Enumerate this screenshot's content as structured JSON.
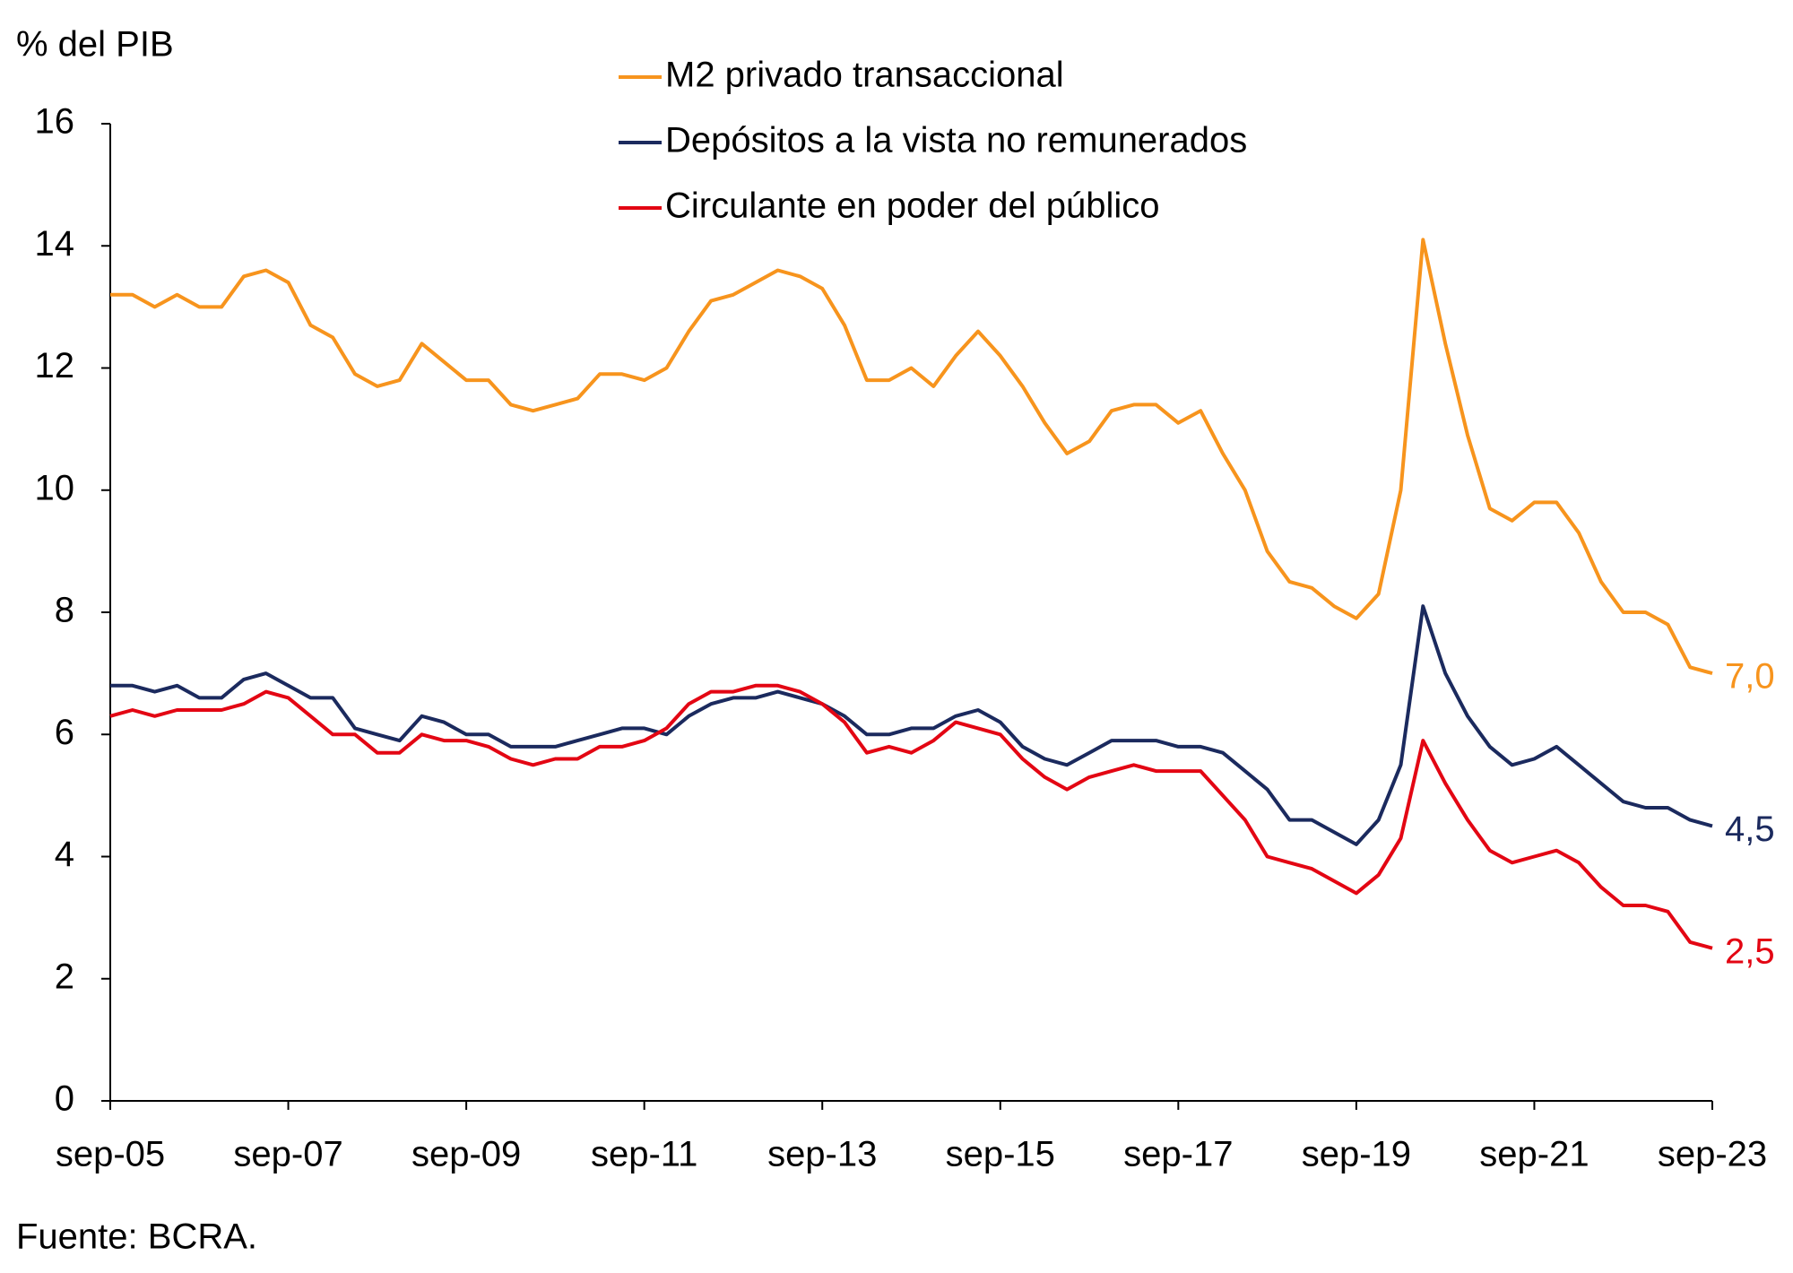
{
  "chart_data": {
    "type": "line",
    "y_label": "% del PIB",
    "source": "Fuente: BCRA.",
    "categories": [
      "sep-05",
      null,
      null,
      null,
      null,
      null,
      null,
      null,
      "sep-07",
      null,
      null,
      null,
      null,
      null,
      null,
      null,
      "sep-09",
      null,
      null,
      null,
      null,
      null,
      null,
      null,
      "sep-11",
      null,
      null,
      null,
      null,
      null,
      null,
      null,
      "sep-13",
      null,
      null,
      null,
      null,
      null,
      null,
      null,
      "sep-15",
      null,
      null,
      null,
      null,
      null,
      null,
      null,
      "sep-17",
      null,
      null,
      null,
      null,
      null,
      null,
      null,
      "sep-19",
      null,
      null,
      null,
      null,
      null,
      null,
      null,
      "sep-21",
      null,
      null,
      null,
      null,
      null,
      null,
      null,
      "sep-23"
    ],
    "ylim": [
      0,
      16
    ],
    "yticks": [
      0,
      2,
      4,
      6,
      8,
      10,
      12,
      14,
      16
    ],
    "series": [
      {
        "name": "M2 privado transaccional",
        "color": "#f7941d",
        "values": [
          13.2,
          13.2,
          13.0,
          13.2,
          13.0,
          13.0,
          13.5,
          13.6,
          13.4,
          12.7,
          12.5,
          11.9,
          11.7,
          11.8,
          12.4,
          12.1,
          11.8,
          11.8,
          11.4,
          11.3,
          11.4,
          11.5,
          11.9,
          11.9,
          11.8,
          12.0,
          12.6,
          13.1,
          13.2,
          13.4,
          13.6,
          13.5,
          13.3,
          12.7,
          11.8,
          11.8,
          12.0,
          11.7,
          12.2,
          12.6,
          12.2,
          11.7,
          11.1,
          10.6,
          10.8,
          11.3,
          11.4,
          11.4,
          11.1,
          11.3,
          10.6,
          10.0,
          9.0,
          8.5,
          8.4,
          8.1,
          7.9,
          8.3,
          10.0,
          14.1,
          12.4,
          10.9,
          9.7,
          9.5,
          9.8,
          9.8,
          9.3,
          8.5,
          8.0,
          8.0,
          7.8,
          7.1,
          7.0
        ],
        "value_labels": [
          null,
          null,
          null,
          null,
          null,
          null,
          null,
          null,
          null,
          null,
          null,
          null,
          null,
          null,
          null,
          null,
          null,
          null,
          null,
          null,
          null,
          null,
          null,
          null,
          null,
          null,
          null,
          null,
          null,
          null,
          null,
          null,
          null,
          null,
          null,
          null,
          null,
          null,
          null,
          null,
          null,
          null,
          null,
          null,
          null,
          null,
          null,
          null,
          null,
          null,
          null,
          null,
          null,
          null,
          null,
          null,
          null,
          null,
          null,
          null,
          null,
          null,
          null,
          null,
          null,
          null,
          null,
          null,
          null,
          null,
          null,
          null,
          "7,0"
        ]
      },
      {
        "name": "Depósitos a la vista no remunerados",
        "color": "#1b2a5e",
        "values": [
          6.8,
          6.8,
          6.7,
          6.8,
          6.6,
          6.6,
          6.9,
          7.0,
          6.8,
          6.6,
          6.6,
          6.1,
          6.0,
          5.9,
          6.3,
          6.2,
          6.0,
          6.0,
          5.8,
          5.8,
          5.8,
          5.9,
          6.0,
          6.1,
          6.1,
          6.0,
          6.3,
          6.5,
          6.6,
          6.6,
          6.7,
          6.6,
          6.5,
          6.3,
          6.0,
          6.0,
          6.1,
          6.1,
          6.3,
          6.4,
          6.2,
          5.8,
          5.6,
          5.5,
          5.7,
          5.9,
          5.9,
          5.9,
          5.8,
          5.8,
          5.7,
          5.4,
          5.1,
          4.6,
          4.6,
          4.4,
          4.2,
          4.6,
          5.5,
          8.1,
          7.0,
          6.3,
          5.8,
          5.5,
          5.6,
          5.8,
          5.5,
          5.2,
          4.9,
          4.8,
          4.8,
          4.6,
          4.5
        ],
        "value_labels": [
          null,
          null,
          null,
          null,
          null,
          null,
          null,
          null,
          null,
          null,
          null,
          null,
          null,
          null,
          null,
          null,
          null,
          null,
          null,
          null,
          null,
          null,
          null,
          null,
          null,
          null,
          null,
          null,
          null,
          null,
          null,
          null,
          null,
          null,
          null,
          null,
          null,
          null,
          null,
          null,
          null,
          null,
          null,
          null,
          null,
          null,
          null,
          null,
          null,
          null,
          null,
          null,
          null,
          null,
          null,
          null,
          null,
          null,
          null,
          null,
          null,
          null,
          null,
          null,
          null,
          null,
          null,
          null,
          null,
          null,
          null,
          null,
          "4,5"
        ]
      },
      {
        "name": "Circulante en poder del público",
        "color": "#e30613",
        "values": [
          6.3,
          6.4,
          6.3,
          6.4,
          6.4,
          6.4,
          6.5,
          6.7,
          6.6,
          6.3,
          6.0,
          6.0,
          5.7,
          5.7,
          6.0,
          5.9,
          5.9,
          5.8,
          5.6,
          5.5,
          5.6,
          5.6,
          5.8,
          5.8,
          5.9,
          6.1,
          6.5,
          6.7,
          6.7,
          6.8,
          6.8,
          6.7,
          6.5,
          6.2,
          5.7,
          5.8,
          5.7,
          5.9,
          6.2,
          6.1,
          6.0,
          5.6,
          5.3,
          5.1,
          5.3,
          5.4,
          5.5,
          5.4,
          5.4,
          5.4,
          5.0,
          4.6,
          4.0,
          3.9,
          3.8,
          3.6,
          3.4,
          3.7,
          4.3,
          5.9,
          5.2,
          4.6,
          4.1,
          3.9,
          4.0,
          4.1,
          3.9,
          3.5,
          3.2,
          3.2,
          3.1,
          2.6,
          2.5
        ],
        "value_labels": [
          null,
          null,
          null,
          null,
          null,
          null,
          null,
          null,
          null,
          null,
          null,
          null,
          null,
          null,
          null,
          null,
          null,
          null,
          null,
          null,
          null,
          null,
          null,
          null,
          null,
          null,
          null,
          null,
          null,
          null,
          null,
          null,
          null,
          null,
          null,
          null,
          null,
          null,
          null,
          null,
          null,
          null,
          null,
          null,
          null,
          null,
          null,
          null,
          null,
          null,
          null,
          null,
          null,
          null,
          null,
          null,
          null,
          null,
          null,
          null,
          null,
          null,
          null,
          null,
          null,
          null,
          null,
          null,
          null,
          null,
          null,
          null,
          "2,5"
        ]
      }
    ]
  }
}
